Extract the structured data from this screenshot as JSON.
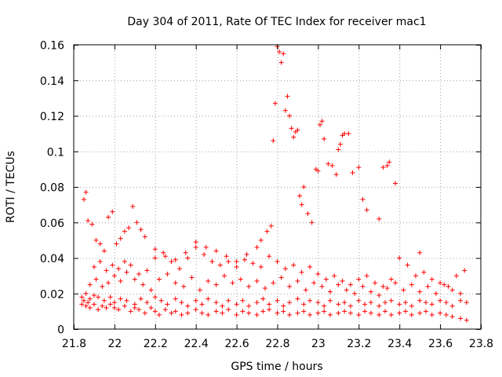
{
  "chart_data": {
    "type": "scatter",
    "title": "Day 304 of 2011, Rate Of TEC Index for receiver mac1",
    "xlabel": "GPS time / hours",
    "ylabel": "ROTI / TECUs",
    "xlim": [
      21.8,
      23.8
    ],
    "ylim": [
      0,
      0.16
    ],
    "x_ticks": [
      21.8,
      22,
      22.2,
      22.4,
      22.6,
      22.8,
      23,
      23.2,
      23.4,
      23.6,
      23.8
    ],
    "x_tick_labels": [
      "21.8",
      "22",
      "22.2",
      "22.4",
      "22.6",
      "22.8",
      "23",
      "23.2",
      "23.4",
      "23.6",
      "23.8"
    ],
    "y_ticks": [
      0,
      0.02,
      0.04,
      0.06,
      0.08,
      0.1,
      0.12,
      0.14,
      0.16
    ],
    "y_tick_labels": [
      "0",
      "0.02",
      "0.04",
      "0.06",
      "0.08",
      "0.1",
      "0.12",
      "0.14",
      "0.16"
    ],
    "grid": true,
    "marker": "plus",
    "colors": {
      "marker": "#ff0000",
      "grid": "#a0a0a0",
      "frame": "#000000"
    },
    "series": [
      {
        "x": [
          21.84,
          21.85,
          21.86,
          21.87,
          21.88,
          21.9,
          21.92,
          21.94,
          21.96,
          21.98,
          22.0,
          22.02,
          22.05,
          22.08,
          22.1,
          22.12,
          22.15,
          22.18,
          22.2,
          22.22,
          22.25,
          22.28,
          22.3,
          22.33,
          22.36,
          22.4,
          22.43,
          22.46,
          22.5,
          22.53,
          22.56,
          22.6,
          22.63,
          22.66,
          22.7,
          22.73,
          22.76,
          22.8,
          22.83,
          22.86,
          22.9,
          22.93,
          22.96,
          23.0,
          23.03,
          23.06,
          23.1,
          23.13,
          23.16,
          23.2,
          23.23,
          23.26,
          23.3,
          23.33,
          23.36,
          23.4,
          23.43,
          23.46,
          23.5,
          23.53,
          23.56,
          23.6,
          23.63,
          23.66,
          23.7,
          23.73
        ],
        "y": [
          0.014,
          0.016,
          0.013,
          0.015,
          0.012,
          0.014,
          0.011,
          0.013,
          0.012,
          0.014,
          0.012,
          0.011,
          0.013,
          0.01,
          0.012,
          0.011,
          0.009,
          0.012,
          0.01,
          0.008,
          0.011,
          0.009,
          0.01,
          0.008,
          0.009,
          0.011,
          0.009,
          0.008,
          0.01,
          0.009,
          0.011,
          0.008,
          0.01,
          0.009,
          0.008,
          0.01,
          0.011,
          0.009,
          0.01,
          0.008,
          0.009,
          0.01,
          0.008,
          0.009,
          0.01,
          0.008,
          0.009,
          0.01,
          0.009,
          0.008,
          0.01,
          0.009,
          0.008,
          0.01,
          0.008,
          0.009,
          0.01,
          0.008,
          0.009,
          0.01,
          0.008,
          0.009,
          0.008,
          0.007,
          0.006,
          0.005
        ]
      },
      {
        "x": [
          21.84,
          21.86,
          21.88,
          21.9,
          21.92,
          21.95,
          21.98,
          22.0,
          22.03,
          22.06,
          22.1,
          22.13,
          22.16,
          22.2,
          22.23,
          22.26,
          22.3,
          22.33,
          22.36,
          22.4,
          22.43,
          22.46,
          22.5,
          22.53,
          22.56,
          22.6,
          22.63,
          22.66,
          22.7,
          22.73,
          22.76,
          22.8,
          22.83,
          22.86,
          22.9,
          22.93,
          22.96,
          23.0,
          23.03,
          23.06,
          23.1,
          23.13,
          23.16,
          23.2,
          23.23,
          23.26,
          23.3,
          23.33,
          23.36,
          23.4,
          23.43,
          23.46,
          23.5,
          23.53,
          23.56,
          23.6,
          23.63,
          23.66,
          23.7,
          23.73
        ],
        "y": [
          0.018,
          0.02,
          0.017,
          0.019,
          0.018,
          0.016,
          0.018,
          0.015,
          0.017,
          0.016,
          0.014,
          0.017,
          0.015,
          0.018,
          0.016,
          0.014,
          0.017,
          0.015,
          0.013,
          0.016,
          0.014,
          0.017,
          0.015,
          0.013,
          0.016,
          0.014,
          0.016,
          0.013,
          0.015,
          0.017,
          0.014,
          0.016,
          0.013,
          0.015,
          0.017,
          0.014,
          0.016,
          0.015,
          0.013,
          0.016,
          0.014,
          0.015,
          0.013,
          0.016,
          0.014,
          0.015,
          0.013,
          0.015,
          0.016,
          0.014,
          0.015,
          0.013,
          0.016,
          0.015,
          0.014,
          0.016,
          0.015,
          0.013,
          0.016,
          0.015
        ]
      },
      {
        "x": [
          21.88,
          21.91,
          21.94,
          21.97,
          22.0,
          22.03,
          22.06,
          22.1,
          22.14,
          22.18,
          22.22,
          22.26,
          22.3,
          22.34,
          22.38,
          22.42,
          22.46,
          22.5,
          22.54,
          22.58,
          22.62,
          22.66,
          22.7,
          22.74,
          22.78,
          22.82,
          22.86,
          22.9,
          22.94,
          22.98,
          23.02,
          23.06,
          23.1,
          23.14,
          23.18,
          23.22,
          23.26,
          23.3,
          23.34,
          23.38,
          23.42,
          23.46,
          23.5,
          23.54,
          23.58,
          23.62,
          23.66,
          23.7
        ],
        "y": [
          0.025,
          0.028,
          0.024,
          0.026,
          0.03,
          0.027,
          0.032,
          0.028,
          0.025,
          0.022,
          0.028,
          0.031,
          0.026,
          0.024,
          0.029,
          0.022,
          0.027,
          0.025,
          0.03,
          0.026,
          0.028,
          0.024,
          0.027,
          0.023,
          0.026,
          0.029,
          0.024,
          0.027,
          0.022,
          0.026,
          0.024,
          0.021,
          0.025,
          0.022,
          0.02,
          0.024,
          0.021,
          0.019,
          0.023,
          0.026,
          0.022,
          0.025,
          0.021,
          0.024,
          0.02,
          0.025,
          0.022,
          0.02
        ]
      },
      {
        "x": [
          21.9,
          21.93,
          21.96,
          21.99,
          22.02,
          22.05,
          22.08,
          22.12,
          22.16,
          22.2,
          22.24,
          22.28,
          22.32,
          22.36,
          22.4,
          22.44,
          22.48,
          22.52,
          22.56,
          22.6,
          22.64,
          22.68,
          22.72,
          22.76,
          22.8,
          22.84,
          22.88,
          22.92,
          22.96,
          23.0,
          23.04,
          23.08,
          23.12,
          23.16,
          23.2,
          23.24,
          23.28,
          23.32,
          23.36,
          23.4,
          23.44,
          23.48,
          23.52,
          23.56,
          23.6,
          23.64,
          23.68,
          23.72
        ],
        "y": [
          0.035,
          0.038,
          0.033,
          0.036,
          0.034,
          0.038,
          0.036,
          0.031,
          0.033,
          0.04,
          0.043,
          0.038,
          0.034,
          0.04,
          0.046,
          0.042,
          0.038,
          0.036,
          0.038,
          0.035,
          0.039,
          0.037,
          0.035,
          0.041,
          0.038,
          0.034,
          0.036,
          0.032,
          0.035,
          0.031,
          0.028,
          0.03,
          0.027,
          0.025,
          0.028,
          0.03,
          0.026,
          0.024,
          0.028,
          0.04,
          0.036,
          0.03,
          0.032,
          0.028,
          0.026,
          0.024,
          0.03,
          0.033
        ]
      },
      {
        "x": [
          21.85,
          21.86,
          21.87,
          21.89,
          21.91,
          21.93,
          21.95,
          21.97,
          21.99,
          22.01,
          22.03,
          22.05,
          22.07,
          22.09,
          22.11,
          22.13,
          22.15,
          22.2,
          22.25,
          22.3,
          22.35,
          22.4,
          22.45,
          22.5,
          22.55,
          22.6,
          22.65,
          22.7
        ],
        "y": [
          0.073,
          0.077,
          0.061,
          0.059,
          0.05,
          0.048,
          0.044,
          0.063,
          0.066,
          0.048,
          0.051,
          0.055,
          0.057,
          0.069,
          0.06,
          0.056,
          0.052,
          0.045,
          0.041,
          0.039,
          0.043,
          0.049,
          0.046,
          0.044,
          0.041,
          0.038,
          0.042,
          0.046
        ]
      },
      {
        "x": [
          22.72,
          22.75,
          22.77,
          22.78,
          22.79,
          22.8,
          22.81,
          22.82,
          22.83,
          22.84,
          22.85,
          22.86,
          22.87,
          22.88,
          22.89,
          22.9,
          22.91,
          22.92,
          22.93,
          22.95,
          22.97,
          22.99,
          23.0,
          23.01,
          23.02,
          23.03,
          23.05,
          23.07,
          23.09,
          23.1,
          23.11,
          23.12,
          23.13,
          23.15,
          23.17,
          23.2,
          23.22,
          23.24,
          23.3,
          23.32,
          23.34,
          23.35,
          23.38,
          23.5
        ],
        "y": [
          0.05,
          0.055,
          0.058,
          0.106,
          0.127,
          0.159,
          0.156,
          0.15,
          0.155,
          0.123,
          0.131,
          0.12,
          0.113,
          0.108,
          0.111,
          0.112,
          0.075,
          0.07,
          0.08,
          0.065,
          0.06,
          0.09,
          0.089,
          0.115,
          0.117,
          0.107,
          0.093,
          0.092,
          0.087,
          0.101,
          0.104,
          0.109,
          0.11,
          0.11,
          0.088,
          0.091,
          0.073,
          0.067,
          0.062,
          0.091,
          0.092,
          0.094,
          0.082,
          0.043
        ]
      }
    ]
  }
}
